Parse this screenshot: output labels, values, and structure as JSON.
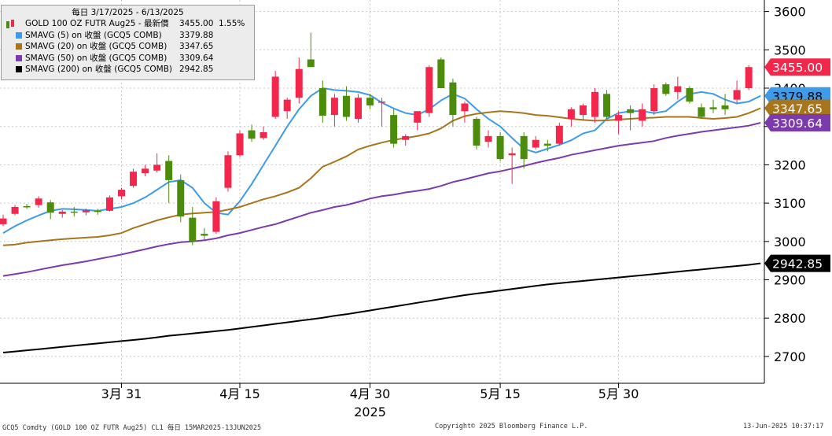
{
  "chart_data": {
    "type": "candlestick",
    "y_ticks": [
      2700,
      2800,
      2900,
      3000,
      3100,
      3200,
      3300,
      3400,
      3500,
      3600
    ],
    "ylim": [
      2630,
      3630
    ],
    "x_ticks": [
      {
        "label": "3月 31",
        "index": 10
      },
      {
        "label": "4月 15",
        "index": 20
      },
      {
        "label": "4月 30",
        "index": 31
      },
      {
        "label": "5月 15",
        "index": 42
      },
      {
        "label": "5月 30",
        "index": 52
      }
    ],
    "year_label": "2025",
    "candles": [
      {
        "o": 3045,
        "h": 3070,
        "l": 3040,
        "c": 3060
      },
      {
        "o": 3072,
        "h": 3095,
        "l": 3068,
        "c": 3090
      },
      {
        "o": 3092,
        "h": 3098,
        "l": 3085,
        "c": 3090
      },
      {
        "o": 3095,
        "h": 3118,
        "l": 3088,
        "c": 3112
      },
      {
        "o": 3102,
        "h": 3108,
        "l": 3058,
        "c": 3075
      },
      {
        "o": 3072,
        "h": 3082,
        "l": 3062,
        "c": 3078
      },
      {
        "o": 3078,
        "h": 3090,
        "l": 3065,
        "c": 3075
      },
      {
        "o": 3076,
        "h": 3086,
        "l": 3068,
        "c": 3082
      },
      {
        "o": 3080,
        "h": 3085,
        "l": 3070,
        "c": 3078
      },
      {
        "o": 3080,
        "h": 3120,
        "l": 3078,
        "c": 3115
      },
      {
        "o": 3118,
        "h": 3140,
        "l": 3110,
        "c": 3135
      },
      {
        "o": 3145,
        "h": 3190,
        "l": 3140,
        "c": 3182
      },
      {
        "o": 3178,
        "h": 3200,
        "l": 3170,
        "c": 3190
      },
      {
        "o": 3185,
        "h": 3230,
        "l": 3180,
        "c": 3200
      },
      {
        "o": 3210,
        "h": 3225,
        "l": 3100,
        "c": 3160
      },
      {
        "o": 3160,
        "h": 3175,
        "l": 3050,
        "c": 3065
      },
      {
        "o": 3062,
        "h": 3090,
        "l": 2990,
        "c": 3000
      },
      {
        "o": 3020,
        "h": 3035,
        "l": 3005,
        "c": 3015
      },
      {
        "o": 3025,
        "h": 3115,
        "l": 3020,
        "c": 3105
      },
      {
        "o": 3140,
        "h": 3235,
        "l": 3130,
        "c": 3225
      },
      {
        "o": 3225,
        "h": 3290,
        "l": 3220,
        "c": 3282
      },
      {
        "o": 3290,
        "h": 3305,
        "l": 3260,
        "c": 3268
      },
      {
        "o": 3270,
        "h": 3300,
        "l": 3265,
        "c": 3285
      },
      {
        "o": 3325,
        "h": 3445,
        "l": 3320,
        "c": 3430
      },
      {
        "o": 3340,
        "h": 3375,
        "l": 3320,
        "c": 3370
      },
      {
        "o": 3375,
        "h": 3480,
        "l": 3360,
        "c": 3450
      },
      {
        "o": 3475,
        "h": 3545,
        "l": 3455,
        "c": 3455
      },
      {
        "o": 3400,
        "h": 3420,
        "l": 3310,
        "c": 3328
      },
      {
        "o": 3330,
        "h": 3385,
        "l": 3300,
        "c": 3375
      },
      {
        "o": 3380,
        "h": 3405,
        "l": 3315,
        "c": 3325
      },
      {
        "o": 3320,
        "h": 3385,
        "l": 3310,
        "c": 3375
      },
      {
        "o": 3375,
        "h": 3385,
        "l": 3345,
        "c": 3355
      },
      {
        "o": 3365,
        "h": 3375,
        "l": 3300,
        "c": 3365
      },
      {
        "o": 3330,
        "h": 3345,
        "l": 3245,
        "c": 3255
      },
      {
        "o": 3265,
        "h": 3280,
        "l": 3250,
        "c": 3275
      },
      {
        "o": 3310,
        "h": 3340,
        "l": 3290,
        "c": 3340
      },
      {
        "o": 3335,
        "h": 3460,
        "l": 3325,
        "c": 3455
      },
      {
        "o": 3475,
        "h": 3480,
        "l": 3400,
        "c": 3400
      },
      {
        "o": 3415,
        "h": 3425,
        "l": 3300,
        "c": 3330
      },
      {
        "o": 3340,
        "h": 3365,
        "l": 3310,
        "c": 3360
      },
      {
        "o": 3320,
        "h": 3325,
        "l": 3240,
        "c": 3250
      },
      {
        "o": 3260,
        "h": 3290,
        "l": 3245,
        "c": 3275
      },
      {
        "o": 3275,
        "h": 3285,
        "l": 3210,
        "c": 3215
      },
      {
        "o": 3225,
        "h": 3245,
        "l": 3150,
        "c": 3230
      },
      {
        "o": 3275,
        "h": 3285,
        "l": 3190,
        "c": 3215
      },
      {
        "o": 3245,
        "h": 3275,
        "l": 3240,
        "c": 3265
      },
      {
        "o": 3255,
        "h": 3265,
        "l": 3235,
        "c": 3250
      },
      {
        "o": 3255,
        "h": 3310,
        "l": 3250,
        "c": 3302
      },
      {
        "o": 3320,
        "h": 3350,
        "l": 3300,
        "c": 3345
      },
      {
        "o": 3330,
        "h": 3360,
        "l": 3315,
        "c": 3355
      },
      {
        "o": 3325,
        "h": 3400,
        "l": 3310,
        "c": 3390
      },
      {
        "o": 3385,
        "h": 3395,
        "l": 3320,
        "c": 3325
      },
      {
        "o": 3315,
        "h": 3340,
        "l": 3280,
        "c": 3330
      },
      {
        "o": 3345,
        "h": 3355,
        "l": 3290,
        "c": 3335
      },
      {
        "o": 3315,
        "h": 3360,
        "l": 3300,
        "c": 3345
      },
      {
        "o": 3340,
        "h": 3410,
        "l": 3330,
        "c": 3400
      },
      {
        "o": 3410,
        "h": 3415,
        "l": 3380,
        "c": 3385
      },
      {
        "o": 3390,
        "h": 3430,
        "l": 3370,
        "c": 3405
      },
      {
        "o": 3400,
        "h": 3405,
        "l": 3360,
        "c": 3365
      },
      {
        "o": 3350,
        "h": 3360,
        "l": 3320,
        "c": 3325
      },
      {
        "o": 3350,
        "h": 3370,
        "l": 3335,
        "c": 3345
      },
      {
        "o": 3355,
        "h": 3385,
        "l": 3330,
        "c": 3345
      },
      {
        "o": 3370,
        "h": 3420,
        "l": 3360,
        "c": 3395
      },
      {
        "o": 3400,
        "h": 3460,
        "l": 3395,
        "c": 3455
      }
    ],
    "series": [
      {
        "name": "SMAVG (5)",
        "color": "#3d9be9",
        "values": [
          3022,
          3040,
          3055,
          3068,
          3080,
          3085,
          3084,
          3082,
          3080,
          3085,
          3090,
          3100,
          3115,
          3135,
          3155,
          3160,
          3140,
          3100,
          3075,
          3070,
          3105,
          3150,
          3200,
          3250,
          3300,
          3345,
          3380,
          3400,
          3395,
          3393,
          3390,
          3382,
          3362,
          3347,
          3335,
          3330,
          3345,
          3368,
          3385,
          3373,
          3345,
          3320,
          3300,
          3270,
          3242,
          3232,
          3242,
          3252,
          3264,
          3282,
          3290,
          3320,
          3335,
          3340,
          3340,
          3335,
          3340,
          3365,
          3385,
          3390,
          3385,
          3370,
          3360,
          3365,
          3379.88
        ]
      },
      {
        "name": "SMAVG (20)",
        "color": "#a8741c",
        "values": [
          2990,
          2992,
          2997,
          3000,
          3003,
          3006,
          3008,
          3010,
          3012,
          3016,
          3022,
          3035,
          3045,
          3055,
          3063,
          3070,
          3073,
          3075,
          3077,
          3083,
          3090,
          3100,
          3110,
          3118,
          3128,
          3140,
          3165,
          3195,
          3208,
          3222,
          3240,
          3250,
          3258,
          3265,
          3270,
          3275,
          3282,
          3295,
          3315,
          3327,
          3333,
          3337,
          3340,
          3338,
          3335,
          3330,
          3328,
          3324,
          3320,
          3317,
          3315,
          3316,
          3318,
          3320,
          3322,
          3323,
          3325,
          3325,
          3325,
          3322,
          3320,
          3322,
          3325,
          3335,
          3347.65
        ]
      },
      {
        "name": "SMAVG (50)",
        "color": "#7b3bad",
        "values": [
          2910,
          2915,
          2920,
          2926,
          2932,
          2938,
          2943,
          2948,
          2954,
          2960,
          2966,
          2973,
          2980,
          2987,
          2993,
          2998,
          3000,
          3003,
          3008,
          3016,
          3022,
          3030,
          3038,
          3045,
          3055,
          3065,
          3075,
          3082,
          3090,
          3095,
          3103,
          3112,
          3118,
          3122,
          3128,
          3132,
          3137,
          3145,
          3155,
          3162,
          3170,
          3178,
          3183,
          3190,
          3197,
          3205,
          3212,
          3218,
          3226,
          3232,
          3238,
          3244,
          3250,
          3254,
          3258,
          3262,
          3270,
          3276,
          3281,
          3286,
          3290,
          3294,
          3298,
          3302,
          3309.64
        ]
      },
      {
        "name": "SMAVG (200)",
        "color": "#000000",
        "values": [
          2710,
          2713,
          2716,
          2719,
          2722,
          2725,
          2728,
          2731,
          2734,
          2737,
          2740,
          2743,
          2746,
          2750,
          2754,
          2757,
          2760,
          2763,
          2766,
          2769,
          2773,
          2777,
          2781,
          2785,
          2789,
          2793,
          2797,
          2801,
          2806,
          2810,
          2815,
          2820,
          2825,
          2830,
          2835,
          2840,
          2845,
          2850,
          2855,
          2860,
          2864,
          2868,
          2872,
          2876,
          2880,
          2884,
          2888,
          2891,
          2894,
          2897,
          2900,
          2903,
          2906,
          2909,
          2912,
          2915,
          2918,
          2921,
          2924,
          2927,
          2930,
          2933,
          2936,
          2939,
          2942.85
        ]
      }
    ]
  },
  "legend": {
    "title": "每日 3/17/2025 - 6/13/2025",
    "rows": [
      {
        "label": "GOLD 100 OZ FUTR Aug25 - 最新價",
        "value": "3455.00",
        "value2": "1.55%",
        "color": "#f2274b",
        "swatch": "candle-icon"
      },
      {
        "label": "SMAVG (5)  on 收盤 (GCQ5 COMB)",
        "value": "3379.88",
        "color": "#3d9be9",
        "swatch": "square-icon"
      },
      {
        "label": "SMAVG (20)  on 收盤 (GCQ5 COMB)",
        "value": "3347.65",
        "color": "#a8741c",
        "swatch": "square-icon"
      },
      {
        "label": "SMAVG (50)  on 收盤 (GCQ5 COMB)",
        "value": "3309.64",
        "color": "#7b3bad",
        "swatch": "square-icon"
      },
      {
        "label": "SMAVG (200)  on 收盤 (GCQ5 COMB)",
        "value": "2942.85",
        "color": "#000000",
        "swatch": "square-icon"
      }
    ]
  },
  "price_tags": [
    {
      "text": "3455.00",
      "value": 3455.0,
      "bg": "#f2274b",
      "fg": "#ffffff"
    },
    {
      "text": "3379.88",
      "value": 3379.88,
      "bg": "#3d9be9",
      "fg": "#000000"
    },
    {
      "text": "3347.65",
      "value": 3347.65,
      "bg": "#a8741c",
      "fg": "#ffffff"
    },
    {
      "text": "3309.64",
      "value": 3309.64,
      "bg": "#7b3bad",
      "fg": "#ffffff"
    },
    {
      "text": "2942.85",
      "value": 2942.85,
      "bg": "#000000",
      "fg": "#ffffff"
    }
  ],
  "colors": {
    "up": "#f2274b",
    "down": "#4c8c0c"
  },
  "footer": {
    "left": "GCQ5 Comdty (GOLD 100 OZ FUTR  Aug25) CL1  每日 15MAR2025-13JUN2025",
    "center": "Copyright© 2025 Bloomberg Finance L.P.",
    "right": "13-Jun-2025 10:37:17"
  }
}
